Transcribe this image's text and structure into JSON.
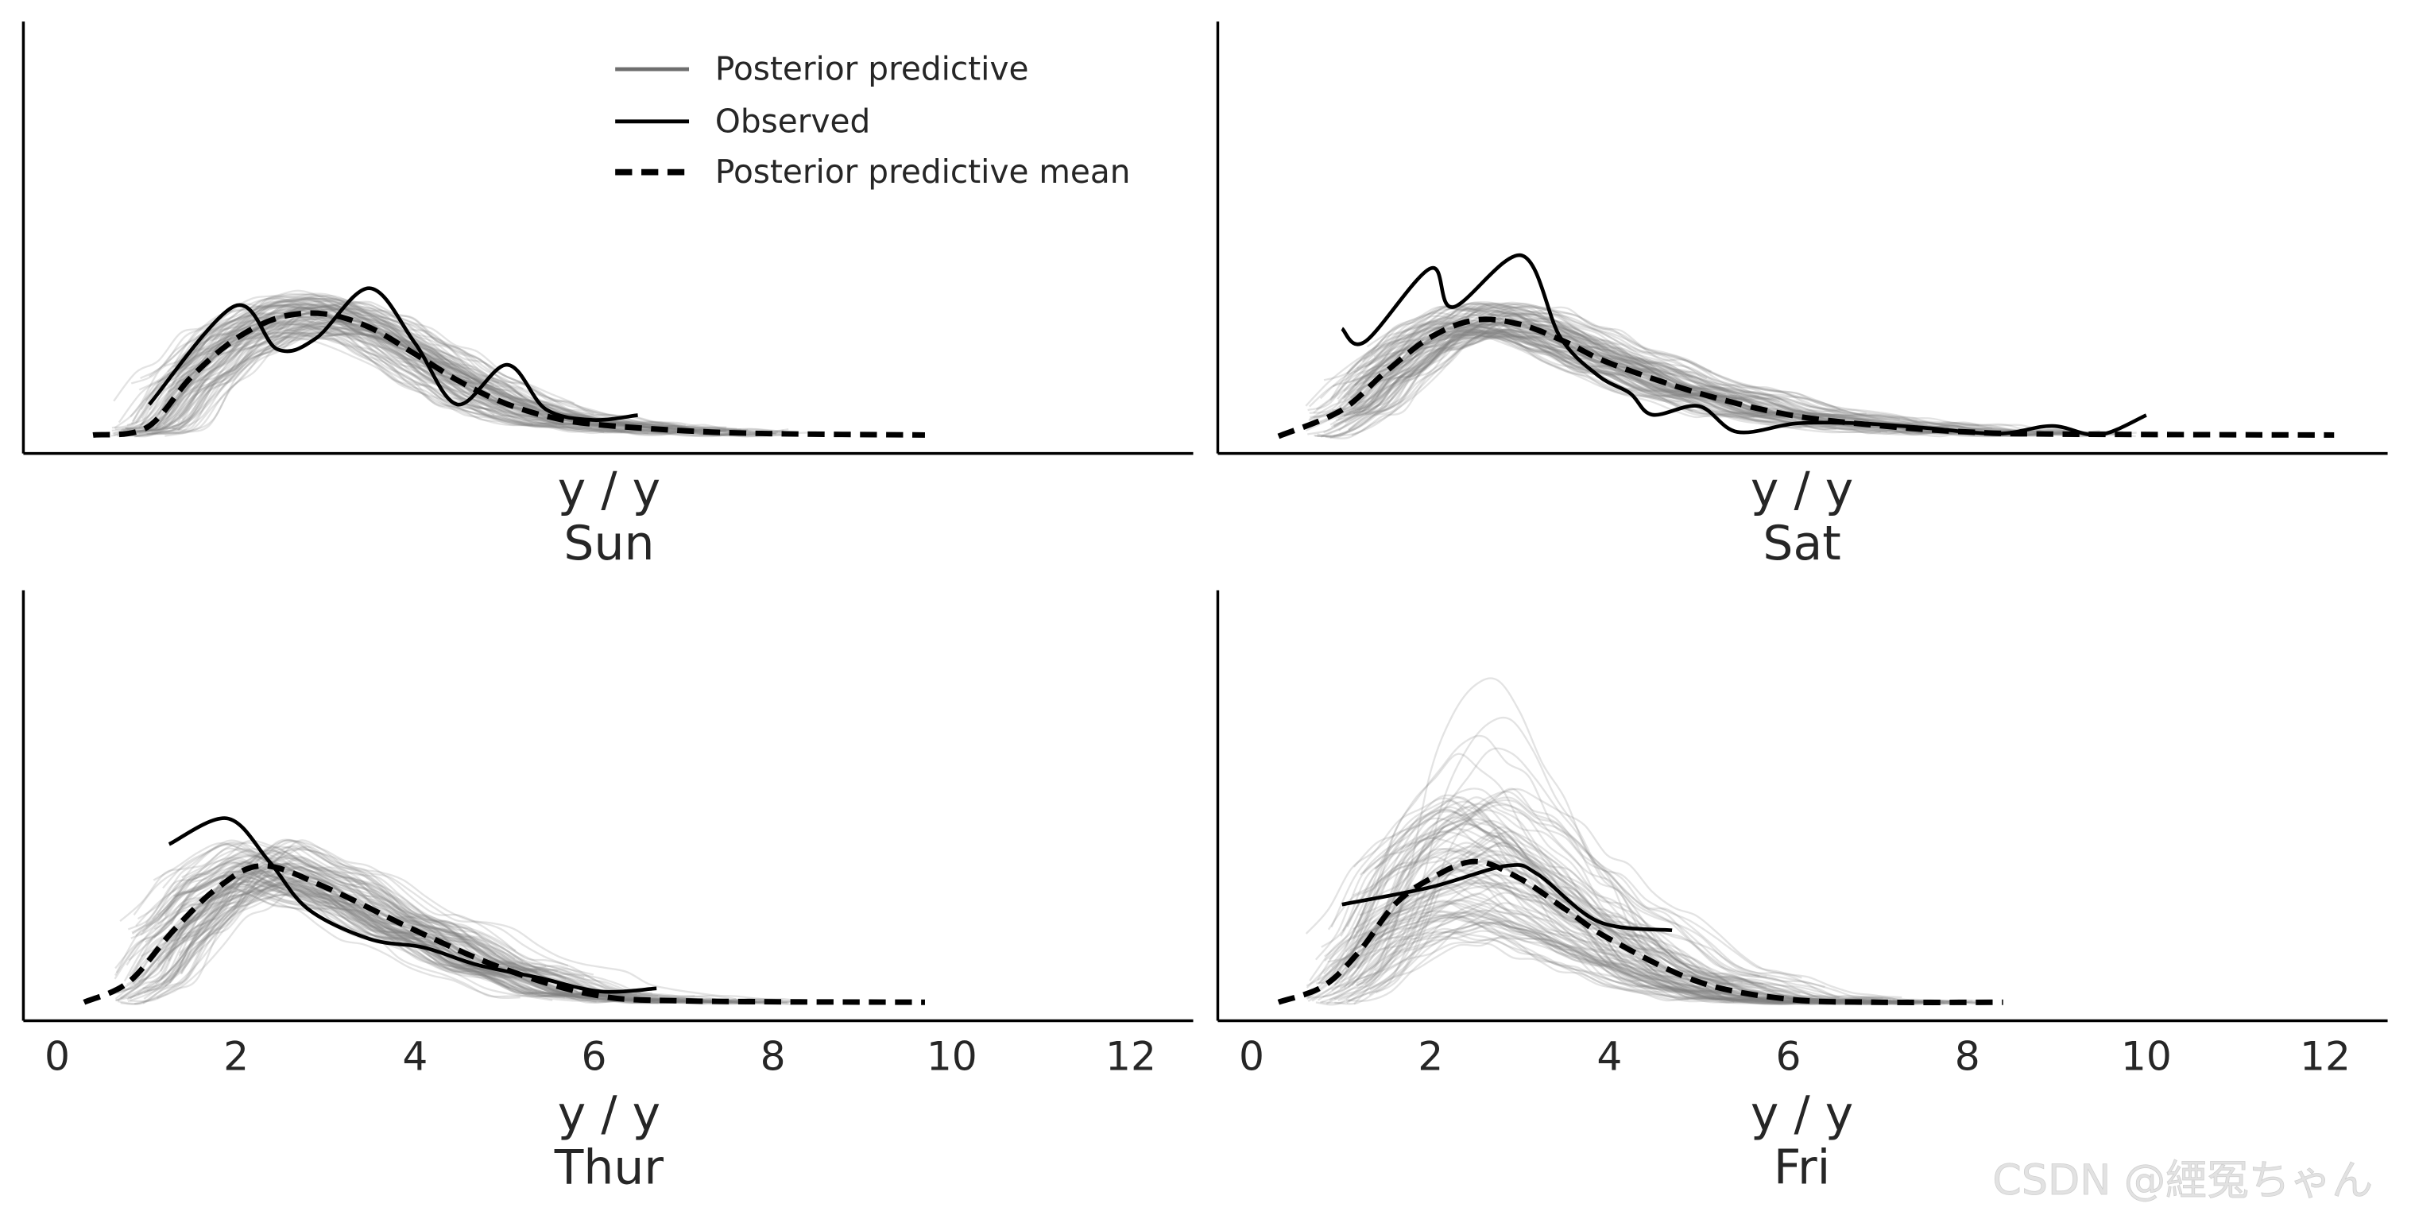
{
  "chart_data": [
    {
      "type": "line",
      "title": "Sun",
      "xlabel": "y / y",
      "xlim": [
        -0.4,
        12.8
      ],
      "xticks": [],
      "ylim": [
        0,
        1
      ],
      "grid": false,
      "observed": {
        "x": [
          1.03,
          1.98,
          2.46,
          2.89,
          3.49,
          4.0,
          4.47,
          5.03,
          5.46,
          5.98,
          6.49
        ],
        "y": [
          0.114,
          0.342,
          0.242,
          0.267,
          0.384,
          0.256,
          0.114,
          0.206,
          0.103,
          0.078,
          0.089
        ]
      },
      "mean": {
        "x": [
          0.4,
          1,
          1.5,
          2,
          2.5,
          3,
          3.5,
          4,
          4.5,
          5,
          5.5,
          6,
          7,
          8,
          9.7
        ],
        "y": [
          0.043,
          0.06,
          0.178,
          0.267,
          0.317,
          0.324,
          0.292,
          0.231,
          0.167,
          0.117,
          0.085,
          0.068,
          0.053,
          0.046,
          0.043
        ]
      },
      "pp_spread": 0.18
    },
    {
      "type": "line",
      "title": "Sat",
      "xlabel": "y / y",
      "xlim": [
        -0.4,
        12.8
      ],
      "xticks": [],
      "ylim": [
        0,
        1
      ],
      "grid": false,
      "observed": {
        "x": [
          1.01,
          1.27,
          2.0,
          2.25,
          3.02,
          3.45,
          3.88,
          4.23,
          4.48,
          5.0,
          5.43,
          6.1,
          6.8,
          7.5,
          8.35,
          8.95,
          9.47,
          10.0
        ],
        "y": [
          0.29,
          0.26,
          0.43,
          0.34,
          0.46,
          0.27,
          0.18,
          0.14,
          0.09,
          0.11,
          0.05,
          0.07,
          0.07,
          0.06,
          0.046,
          0.064,
          0.043,
          0.089
        ]
      },
      "mean": {
        "x": [
          0.3,
          1,
          1.5,
          2,
          2.5,
          3,
          3.5,
          4,
          5,
          6,
          7,
          8,
          9,
          12.1
        ],
        "y": [
          0.04,
          0.1,
          0.19,
          0.27,
          0.31,
          0.3,
          0.26,
          0.21,
          0.14,
          0.09,
          0.065,
          0.05,
          0.045,
          0.043
        ]
      },
      "pp_spread": 0.15
    },
    {
      "type": "line",
      "title": "Thur",
      "xlabel": "y / y",
      "xlim": [
        -0.4,
        12.8
      ],
      "xticks": [
        "0",
        "2",
        "4",
        "6",
        "8",
        "10",
        "12"
      ],
      "ylim": [
        0,
        1
      ],
      "grid": false,
      "observed": {
        "x": [
          1.25,
          1.9,
          2.37,
          2.8,
          3.49,
          4.1,
          4.69,
          5.38,
          6.07,
          6.7
        ],
        "y": [
          0.41,
          0.47,
          0.37,
          0.26,
          0.19,
          0.17,
          0.13,
          0.1,
          0.068,
          0.075
        ]
      },
      "mean": {
        "x": [
          0.3,
          0.8,
          1.3,
          1.8,
          2.3,
          3,
          4,
          5,
          6,
          7,
          9.7
        ],
        "y": [
          0.043,
          0.09,
          0.21,
          0.31,
          0.36,
          0.31,
          0.21,
          0.12,
          0.06,
          0.046,
          0.043
        ]
      },
      "pp_spread": 0.2
    },
    {
      "type": "line",
      "title": "Fri",
      "xlabel": "y / y",
      "xlim": [
        -0.4,
        12.8
      ],
      "xticks": [
        "0",
        "2",
        "4",
        "6",
        "8",
        "10",
        "12"
      ],
      "ylim": [
        0,
        1
      ],
      "grid": false,
      "observed": {
        "x": [
          1.01,
          2.0,
          2.85,
          3.2,
          3.88,
          4.7
        ],
        "y": [
          0.27,
          0.31,
          0.36,
          0.34,
          0.23,
          0.21
        ]
      },
      "mean": {
        "x": [
          0.3,
          0.8,
          1.2,
          1.6,
          2,
          2.5,
          3,
          3.5,
          4,
          5,
          6,
          7,
          8.4
        ],
        "y": [
          0.043,
          0.08,
          0.16,
          0.27,
          0.33,
          0.37,
          0.33,
          0.26,
          0.19,
          0.09,
          0.05,
          0.043,
          0.043
        ]
      },
      "pp_spread": 0.55
    }
  ],
  "legend": {
    "placement": "top (first panel)",
    "items": [
      {
        "label": "Posterior predictive",
        "color": "#6e6e6e",
        "style": "solid"
      },
      {
        "label": "Observed",
        "color": "#000000",
        "style": "solid"
      },
      {
        "label": "Posterior predictive mean",
        "color": "#000000",
        "style": "dashed"
      }
    ]
  },
  "colors": {
    "samples": "#808080",
    "observed": "#000000",
    "mean": "#000000"
  },
  "watermark": "CSDN @緸冤ちゃん"
}
